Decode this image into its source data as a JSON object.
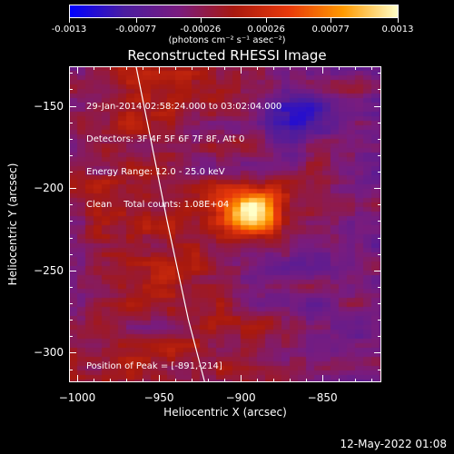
{
  "colorbar": {
    "tick_labels": [
      "-0.0013",
      "-0.00077",
      "-0.00026",
      "0.00026",
      "0.00077",
      "0.0013"
    ],
    "tick_values": [
      -0.0013,
      -0.00077,
      -0.00026,
      0.00026,
      0.00077,
      0.0013
    ],
    "range": [
      -0.0013,
      0.0013
    ],
    "units": "(photons cm⁻² s⁻¹ asec⁻²)",
    "colors": [
      "#0000ff",
      "#4b1da0",
      "#7a1c7e",
      "#a8190f",
      "#e8390a",
      "#ff9a00",
      "#ffffc8"
    ]
  },
  "chart_data": {
    "type": "heatmap",
    "title": "Reconstructed RHESSI Image",
    "xlabel": "Heliocentric X (arcsec)",
    "ylabel": "Heliocentric Y (arcsec)",
    "xlim": [
      -1005,
      -814
    ],
    "ylim": [
      -318,
      -126
    ],
    "xticks": [
      -1000,
      -950,
      -900,
      -850
    ],
    "xtick_labels": [
      "−1000",
      "−950",
      "−900",
      "−850"
    ],
    "yticks": [
      -150,
      -200,
      -250,
      -300
    ],
    "ytick_labels": [
      "−150",
      "−200",
      "−250",
      "−300"
    ],
    "peak": [
      -891,
      -214
    ],
    "annotations": {
      "info_lines": [
        "29-Jan-2014 02:58:24.000 to 03:02:04.000",
        "Detectors: 3F 4F 5F 6F 7F 8F, Att 0",
        "Energy Range: 12.0 - 25.0 keV",
        "Clean    Total counts: 1.08E+04"
      ],
      "peak_text": "Position of Peak = [-891,-214]"
    },
    "limb_curve_x": [
      -964,
      -945,
      -932,
      -922
    ],
    "limb_curve_y": [
      -126,
      -220,
      -280,
      -318
    ]
  },
  "footer": {
    "date_stamp": "12-May-2022 01:08"
  }
}
